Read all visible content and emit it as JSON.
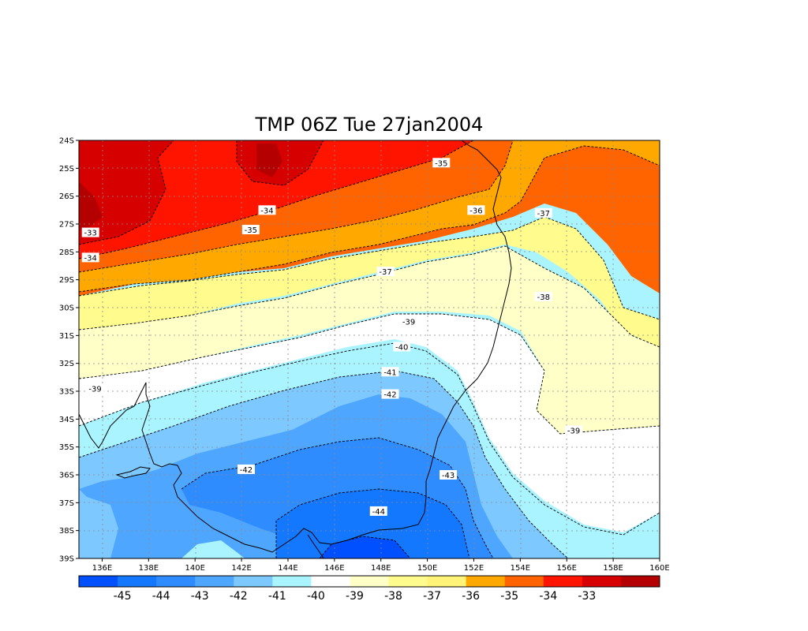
{
  "title": "TMP 06Z Tue 27jan2004",
  "lat_labels": [
    "24S",
    "25S",
    "26S",
    "27S",
    "28S",
    "29S",
    "30S",
    "31S",
    "32S",
    "33S",
    "34S",
    "35S",
    "36S",
    "37S",
    "38S",
    "39S"
  ],
  "lon_labels": [
    "136E",
    "138E",
    "140E",
    "142E",
    "144E",
    "146E",
    "148E",
    "150E",
    "152E",
    "154E",
    "156E",
    "158E",
    "160E"
  ],
  "colorbar": {
    "colors": [
      "#0050ff",
      "#1478ff",
      "#2f8cff",
      "#4ea6ff",
      "#7cc8ff",
      "#aaf4ff",
      "#ffffff",
      "#ffffc8",
      "#fffb8c",
      "#fff478",
      "#ffa800",
      "#ff6400",
      "#ff1400",
      "#d70000",
      "#b40000"
    ],
    "labels": [
      "-45",
      "-44",
      "-43",
      "-42",
      "-41",
      "-40",
      "-39",
      "-38",
      "-37",
      "-36",
      "-35",
      "-34",
      "-33"
    ]
  },
  "contour_labels": [
    {
      "text": "-35",
      "lon": 150.6,
      "lat": -24.8
    },
    {
      "text": "-34",
      "lon": 143.1,
      "lat": -26.5
    },
    {
      "text": "-36",
      "lon": 152.1,
      "lat": -26.5
    },
    {
      "text": "-37",
      "lon": 155.0,
      "lat": -26.6
    },
    {
      "text": "-33",
      "lon": 135.5,
      "lat": -27.3
    },
    {
      "text": "-35",
      "lon": 142.4,
      "lat": -27.2
    },
    {
      "text": "-34",
      "lon": 135.5,
      "lat": -28.2
    },
    {
      "text": "-37",
      "lon": 148.2,
      "lat": -28.7
    },
    {
      "text": "-38",
      "lon": 155.0,
      "lat": -29.6
    },
    {
      "text": "-39",
      "lon": 149.2,
      "lat": -30.5
    },
    {
      "text": "-40",
      "lon": 148.9,
      "lat": -31.4
    },
    {
      "text": "-41",
      "lon": 148.4,
      "lat": -32.3
    },
    {
      "text": "-39",
      "lon": 135.7,
      "lat": -32.9
    },
    {
      "text": "-42",
      "lon": 148.4,
      "lat": -33.1
    },
    {
      "text": "-39",
      "lon": 156.3,
      "lat": -34.4
    },
    {
      "text": "-42",
      "lon": 142.2,
      "lat": -35.8
    },
    {
      "text": "-43",
      "lon": 150.9,
      "lat": -36.0
    },
    {
      "text": "-44",
      "lon": 147.9,
      "lat": -37.3
    }
  ]
}
